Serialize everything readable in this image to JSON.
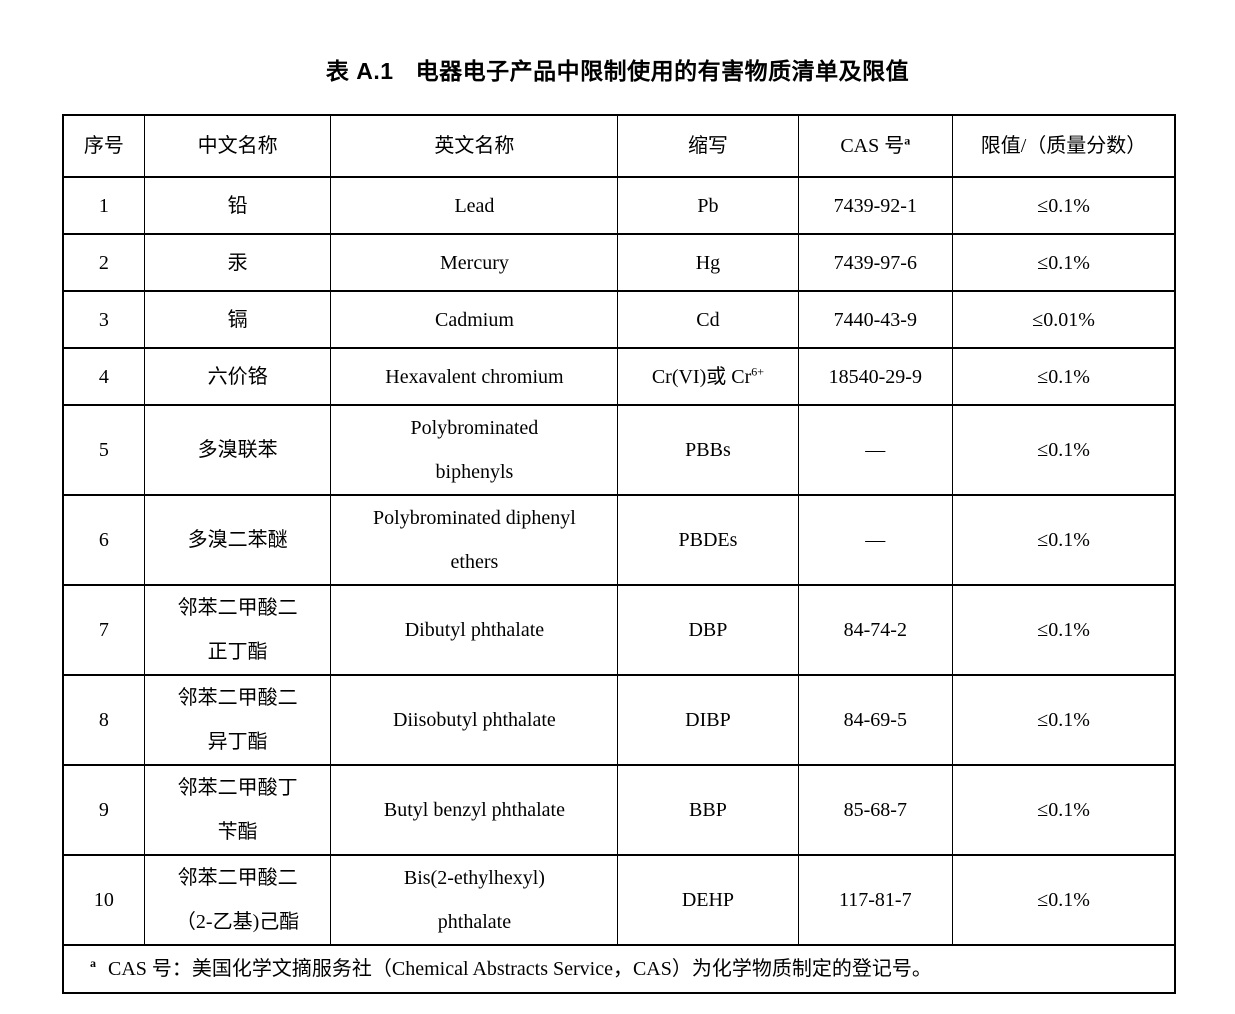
{
  "page": {
    "title_prefix": "表 A.1",
    "title_main": "电器电子产品中限制使用的有害物质清单及限值"
  },
  "table": {
    "headers": [
      {
        "text": "序号"
      },
      {
        "text": "中文名称"
      },
      {
        "text": "英文名称"
      },
      {
        "text": "缩写"
      },
      {
        "text": "CAS 号",
        "sup": "a"
      },
      {
        "text": "限值/（质量分数）"
      }
    ],
    "rows": [
      {
        "no": "1",
        "cn": "铅",
        "en": "Lead",
        "abbr": {
          "text": "Pb"
        },
        "cas": "7439-92-1",
        "limit": "≤0.1%",
        "tall": false
      },
      {
        "no": "2",
        "cn": "汞",
        "en": "Mercury",
        "abbr": {
          "text": "Hg"
        },
        "cas": "7439-97-6",
        "limit": "≤0.1%",
        "tall": false
      },
      {
        "no": "3",
        "cn": "镉",
        "en": "Cadmium",
        "abbr": {
          "text": "Cd"
        },
        "cas": "7440-43-9",
        "limit": "≤0.01%",
        "tall": false
      },
      {
        "no": "4",
        "cn": "六价铬",
        "en": "Hexavalent chromium",
        "abbr": {
          "text": "Cr(VI)或 Cr",
          "sup": "6+"
        },
        "cas": "18540-29-9",
        "limit": "≤0.1%",
        "tall": false
      },
      {
        "no": "5",
        "cn": "多溴联苯",
        "en": "Polybrominated\nbiphenyls",
        "abbr": {
          "text": "PBBs"
        },
        "cas": "—",
        "limit": "≤0.1%",
        "tall": true
      },
      {
        "no": "6",
        "cn": "多溴二苯醚",
        "en": "Polybrominated diphenyl\nethers",
        "abbr": {
          "text": "PBDEs"
        },
        "cas": "—",
        "limit": "≤0.1%",
        "tall": true
      },
      {
        "no": "7",
        "cn": "邻苯二甲酸二\n正丁酯",
        "en": "Dibutyl phthalate",
        "abbr": {
          "text": "DBP"
        },
        "cas": "84-74-2",
        "limit": "≤0.1%",
        "tall": true
      },
      {
        "no": "8",
        "cn": "邻苯二甲酸二\n异丁酯",
        "en": "Diisobutyl phthalate",
        "abbr": {
          "text": "DIBP"
        },
        "cas": "84-69-5",
        "limit": "≤0.1%",
        "tall": true
      },
      {
        "no": "9",
        "cn": "邻苯二甲酸丁\n苄酯",
        "en": "Butyl benzyl phthalate",
        "abbr": {
          "text": "BBP"
        },
        "cas": "85-68-7",
        "limit": "≤0.1%",
        "tall": true
      },
      {
        "no": "10",
        "cn": "邻苯二甲酸二\n（2-乙基)己酯",
        "en": "Bis(2-ethylhexyl)\nphthalate",
        "abbr": {
          "text": "DEHP"
        },
        "cas": "117-81-7",
        "limit": "≤0.1%",
        "tall": true
      }
    ],
    "footnote": {
      "marker": "a",
      "text": "CAS 号：美国化学文摘服务社（Chemical Abstracts Service，CAS）为化学物质制定的登记号。"
    }
  }
}
